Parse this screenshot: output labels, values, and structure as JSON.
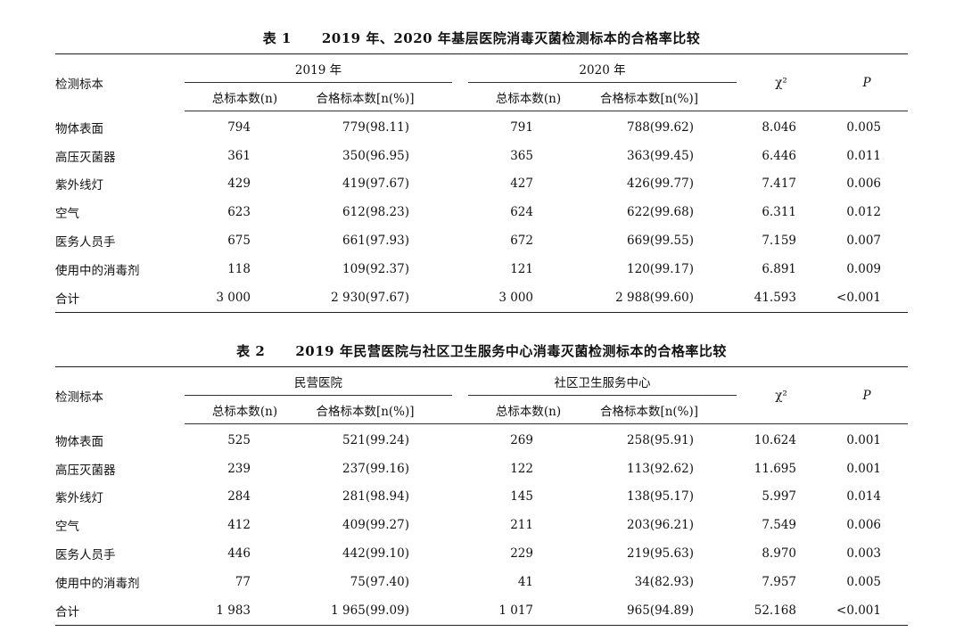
{
  "headers": {
    "label": "检测标本",
    "total": "总标本数(n)",
    "qualified": "合格标本数[n(%)]",
    "chi": "χ²",
    "p": "P"
  },
  "tables": [
    {
      "num": "表 1",
      "title": "2019 年、2020 年基层医院消毒灭菌检测标本的合格率比较",
      "groups": [
        "2019 年",
        "2020 年"
      ],
      "rows": [
        [
          "物体表面",
          "794",
          "779(98.11)",
          "791",
          "788(99.62)",
          "8.046",
          "0.005"
        ],
        [
          "高压灭菌器",
          "361",
          "350(96.95)",
          "365",
          "363(99.45)",
          "6.446",
          "0.011"
        ],
        [
          "紫外线灯",
          "429",
          "419(97.67)",
          "427",
          "426(99.77)",
          "7.417",
          "0.006"
        ],
        [
          "空气",
          "623",
          "612(98.23)",
          "624",
          "622(99.68)",
          "6.311",
          "0.012"
        ],
        [
          "医务人员手",
          "675",
          "661(97.93)",
          "672",
          "669(99.55)",
          "7.159",
          "0.007"
        ],
        [
          "使用中的消毒剂",
          "118",
          "109(92.37)",
          "121",
          "120(99.17)",
          "6.891",
          "0.009"
        ],
        [
          "合计",
          "3 000",
          "2 930(97.67)",
          "3 000",
          "2 988(99.60)",
          "41.593",
          "<0.001"
        ]
      ]
    },
    {
      "num": "表 2",
      "title": "2019 年民营医院与社区卫生服务中心消毒灭菌检测标本的合格率比较",
      "groups": [
        "民营医院",
        "社区卫生服务中心"
      ],
      "rows": [
        [
          "物体表面",
          "525",
          "521(99.24)",
          "269",
          "258(95.91)",
          "10.624",
          "0.001"
        ],
        [
          "高压灭菌器",
          "239",
          "237(99.16)",
          "122",
          "113(92.62)",
          "11.695",
          "0.001"
        ],
        [
          "紫外线灯",
          "284",
          "281(98.94)",
          "145",
          "138(95.17)",
          "5.997",
          "0.014"
        ],
        [
          "空气",
          "412",
          "409(99.27)",
          "211",
          "203(96.21)",
          "7.549",
          "0.006"
        ],
        [
          "医务人员手",
          "446",
          "442(99.10)",
          "229",
          "219(95.63)",
          "8.970",
          "0.003"
        ],
        [
          "使用中的消毒剂",
          "77",
          "75(97.40)",
          "41",
          "34(82.93)",
          "7.957",
          "0.005"
        ],
        [
          "合计",
          "1 983",
          "1 965(99.09)",
          "1 017",
          "965(94.89)",
          "52.168",
          "<0.001"
        ]
      ]
    }
  ]
}
